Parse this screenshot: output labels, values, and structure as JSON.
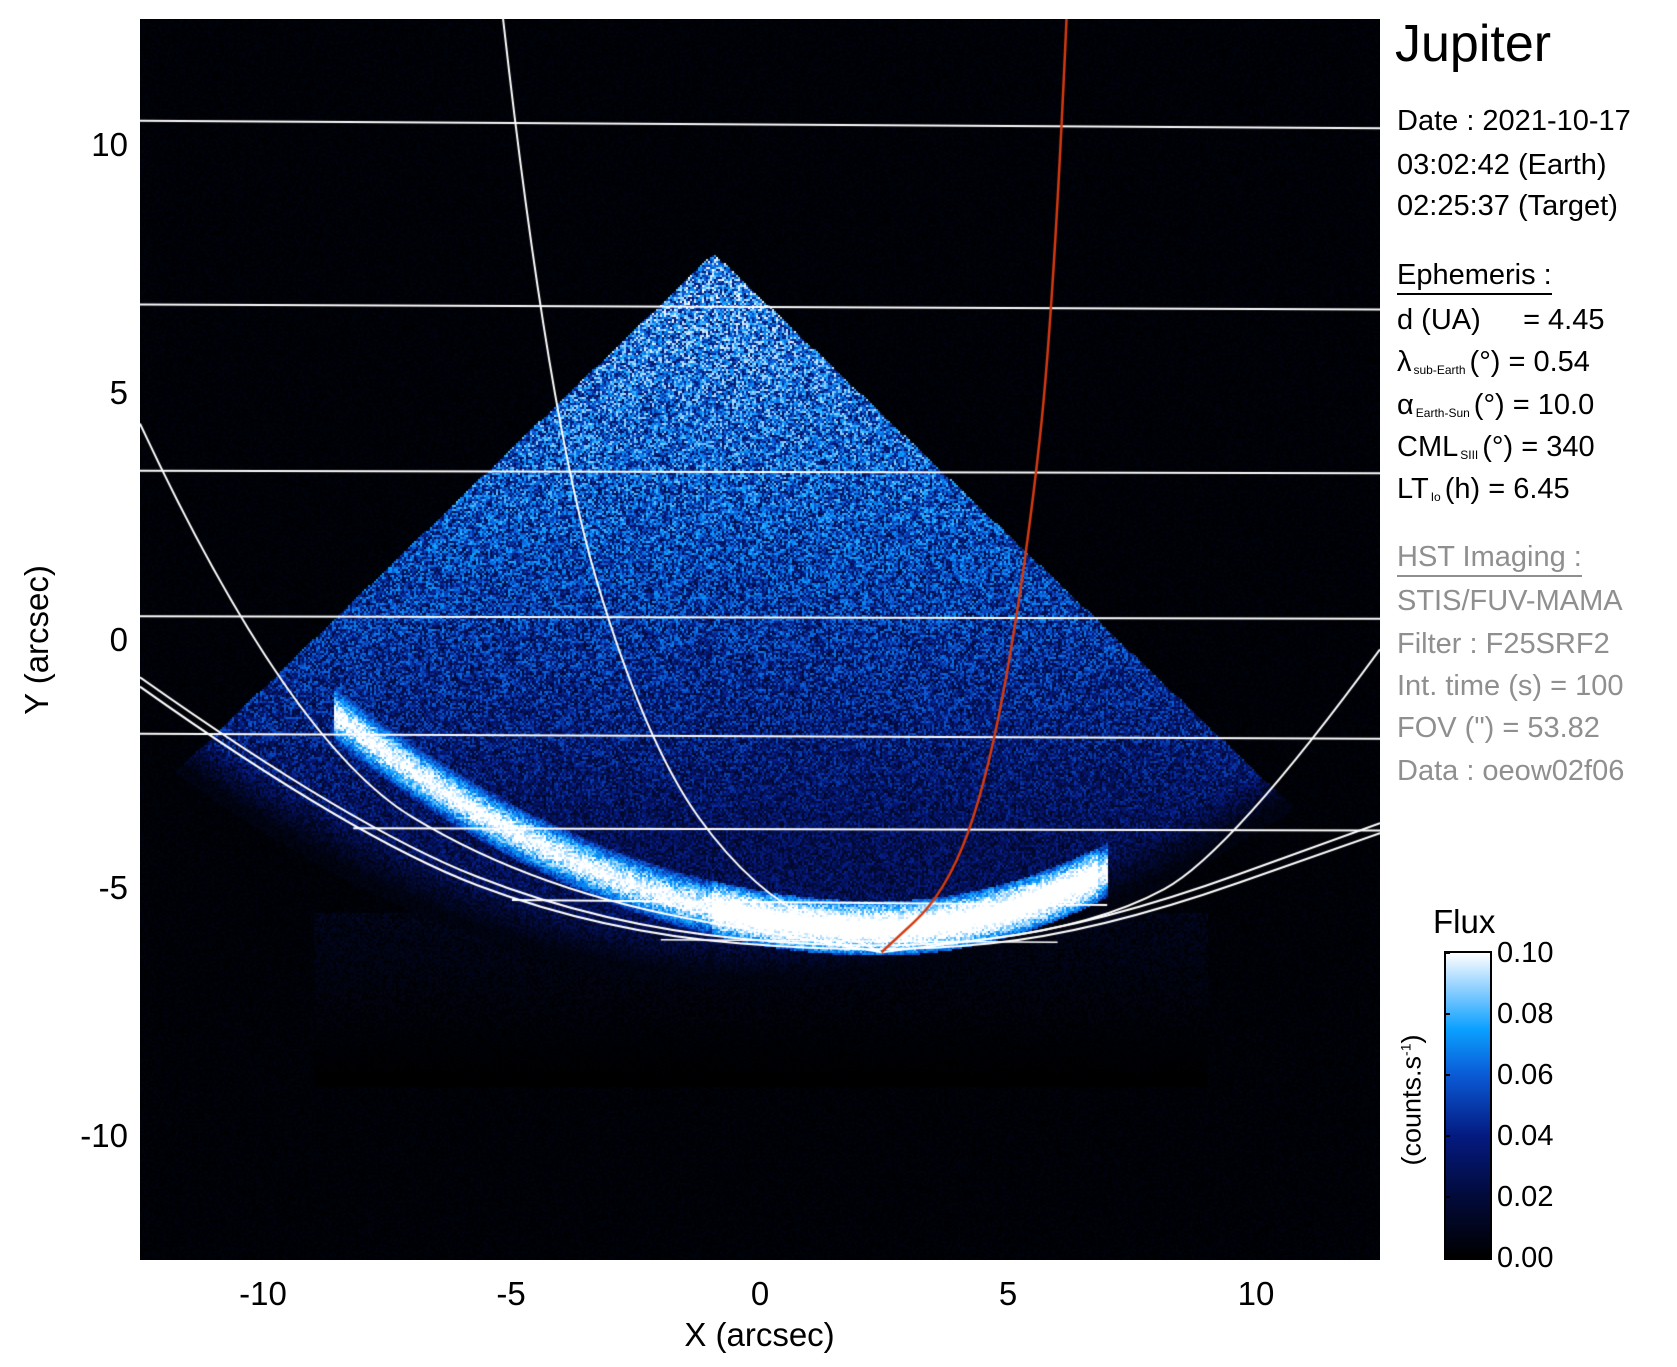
{
  "chart_data": {
    "type": "heatmap",
    "title": "Jupiter",
    "xlabel": "X (arcsec)",
    "ylabel": "Y (arcsec)",
    "xlim": [
      -12.5,
      12.5
    ],
    "ylim": [
      -12.5,
      12.5
    ],
    "xticks": [
      "-10",
      "-5",
      "0",
      "5",
      "10"
    ],
    "yticks": [
      "10",
      "5",
      "0",
      "-5",
      "-10"
    ],
    "xtick_values": [
      -10,
      -5,
      0,
      5,
      10
    ],
    "ytick_values": [
      10,
      5,
      0,
      -5,
      -10
    ],
    "grid": false,
    "overlay_colors": {
      "planet_grid": "#ffffff",
      "io_footprint_meridian": "#d43a10"
    },
    "colorbar": {
      "label": "Flux",
      "unit_label": "(counts.s",
      "unit_sup": "-1",
      "unit_close": ")",
      "range": [
        0.0,
        0.1
      ],
      "ticks": [
        "0.10",
        "0.08",
        "0.06",
        "0.04",
        "0.02",
        "0.00"
      ],
      "tick_values": [
        0.1,
        0.08,
        0.06,
        0.04,
        0.02,
        0.0
      ],
      "colormap": [
        "#000000",
        "#020a3a",
        "#041a80",
        "#0a5ad6",
        "#0aa0ff",
        "#9fd6ff",
        "#ffffff"
      ]
    }
  },
  "info": {
    "date": "Date : 2021-10-17",
    "time_earth": "03:02:42 (Earth)",
    "time_target": "02:25:37 (Target)",
    "ephemeris_heading": "Ephemeris :",
    "d": {
      "label": "d (UA)",
      "value": "= 4.45"
    },
    "lambda": {
      "symbol": "λ",
      "sub": "sub-Earth",
      "rest": "(°) = 0.54"
    },
    "alpha": {
      "symbol": "α",
      "sub": "Earth-Sun",
      "rest": "(°) = 10.0"
    },
    "cml": {
      "symbol": "CML",
      "sub": "SIII",
      "rest": "(°) = 340"
    },
    "lt": {
      "symbol": "LT",
      "sub": "Io",
      "rest": "(h) = 6.45"
    },
    "hst_heading": "HST Imaging :",
    "instrument": "STIS/FUV-MAMA",
    "filter": "Filter : F25SRF2",
    "int_time": "Int. time (s) = 100",
    "fov": "FOV (\") = 53.82",
    "dataset": "Data : oeow02f06"
  }
}
